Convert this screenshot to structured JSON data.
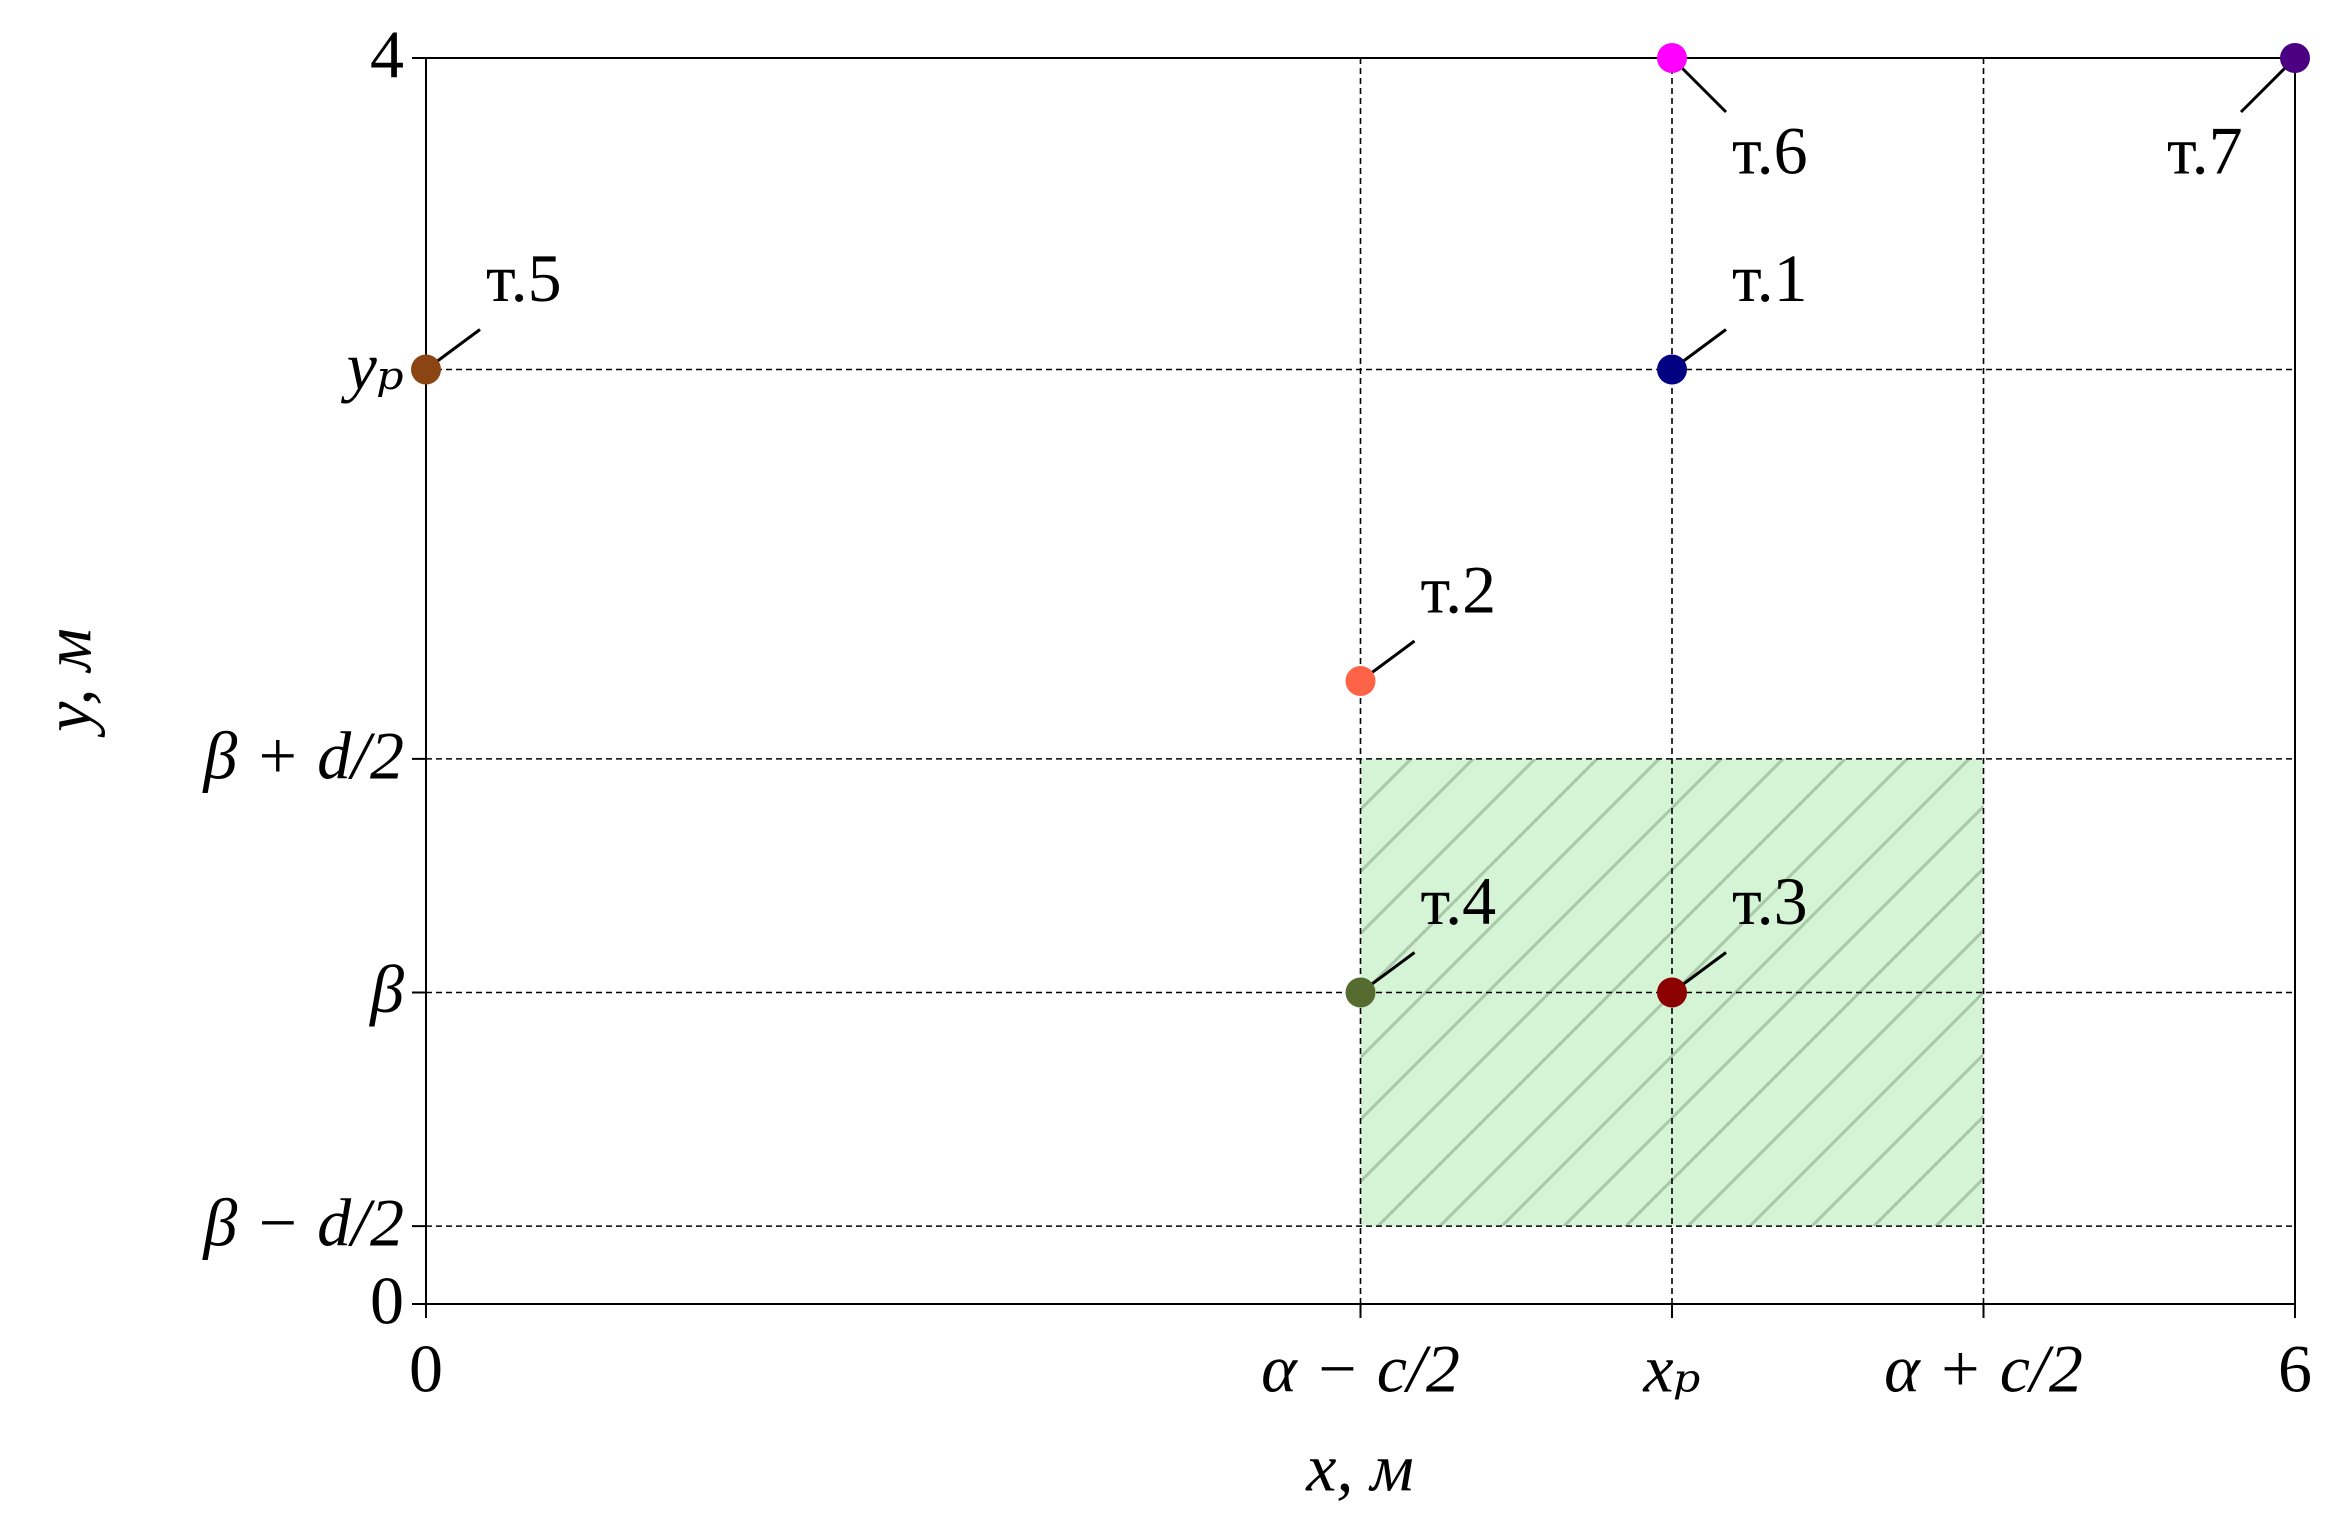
{
  "chart_data": {
    "type": "scatter",
    "xlabel": "x, м",
    "ylabel": "y, м",
    "xlim": [
      0,
      6
    ],
    "ylim": [
      0,
      4
    ],
    "xticks": [
      0,
      {
        "value": 3,
        "label": "α − c/2"
      },
      {
        "value": 4,
        "label": "xₚ"
      },
      {
        "value": 5,
        "label": "α + c/2"
      },
      6
    ],
    "yticks": [
      0,
      {
        "value": 0.25,
        "label": "β − d/2"
      },
      {
        "value": 1,
        "label": "β"
      },
      {
        "value": 1.75,
        "label": "β + d/2"
      },
      {
        "value": 3,
        "label": "yₚ"
      },
      4
    ],
    "grid": true,
    "regions": [
      {
        "x": [
          3,
          5
        ],
        "y": [
          0.25,
          1.75
        ],
        "color": "#d5f3d5",
        "hatch": "#a8c8a8"
      }
    ],
    "points": [
      {
        "label": "т.1",
        "x": 4,
        "y": 3,
        "color": "#000080"
      },
      {
        "label": "т.2",
        "x": 3,
        "y": 2,
        "color": "#ff6347"
      },
      {
        "label": "т.3",
        "x": 4,
        "y": 1,
        "color": "#8b0000"
      },
      {
        "label": "т.4",
        "x": 3,
        "y": 1,
        "color": "#556b2f"
      },
      {
        "label": "т.5",
        "x": 0,
        "y": 3,
        "color": "#8b4513"
      },
      {
        "label": "т.6",
        "x": 4,
        "y": 4,
        "color": "#ff00ff"
      },
      {
        "label": "т.7",
        "x": 6,
        "y": 4,
        "color": "#4b0082"
      }
    ]
  }
}
